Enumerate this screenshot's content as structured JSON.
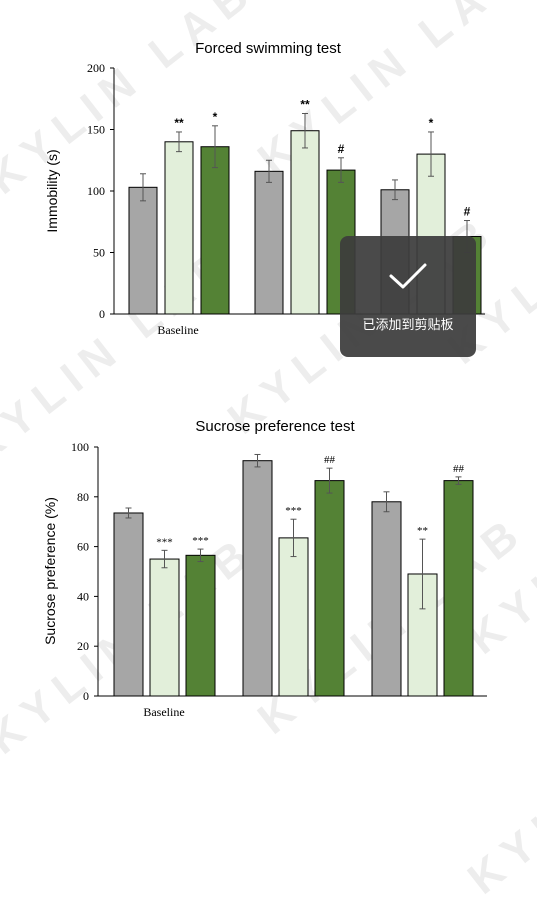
{
  "colors": {
    "baseline": "#a6a6a6",
    "treatment_light": "#e2efda",
    "treatment_dark": "#548235",
    "bar_border": "#000000",
    "watermark": "#ededed"
  },
  "watermark": {
    "text": "KYLIN LAB"
  },
  "toast": {
    "icon": "checkmark-icon",
    "message": "已添加到剪贴板"
  },
  "chart_data": [
    {
      "type": "bar",
      "title": "Forced swimming test",
      "ylabel": "Immobility (s)",
      "xlabel": "",
      "ylim": [
        0,
        200
      ],
      "yticks": [
        0,
        50,
        100,
        150,
        200
      ],
      "categories": [
        "Baseline",
        "",
        ""
      ],
      "series": [
        {
          "values": [
            103,
            116,
            101
          ],
          "errors": [
            11,
            9,
            8
          ]
        },
        {
          "values": [
            140,
            149,
            130
          ],
          "errors": [
            8,
            14,
            18
          ]
        },
        {
          "values": [
            136,
            117,
            63
          ],
          "errors": [
            17,
            10,
            13
          ]
        }
      ],
      "annotations": [
        [
          "",
          "**",
          "*"
        ],
        [
          "",
          "**",
          "#"
        ],
        [
          "",
          "*",
          "#"
        ]
      ]
    },
    {
      "type": "bar",
      "title": "Sucrose preference test",
      "ylabel": "Sucrose preference (%)",
      "xlabel": "",
      "ylim": [
        0,
        100
      ],
      "yticks": [
        0,
        20,
        40,
        60,
        80,
        100
      ],
      "categories": [
        "Baseline",
        "",
        ""
      ],
      "series": [
        {
          "values": [
            73.5,
            94.5,
            78
          ],
          "errors": [
            2,
            2.5,
            4
          ]
        },
        {
          "values": [
            55,
            63.5,
            49
          ],
          "errors": [
            3.5,
            7.5,
            14
          ]
        },
        {
          "values": [
            56.5,
            86.5,
            86.5
          ],
          "errors": [
            2.5,
            5,
            1.5
          ]
        }
      ],
      "annotations": [
        [
          "",
          "***",
          "***"
        ],
        [
          "",
          "***",
          "##"
        ],
        [
          "",
          "**",
          "##"
        ]
      ]
    }
  ]
}
